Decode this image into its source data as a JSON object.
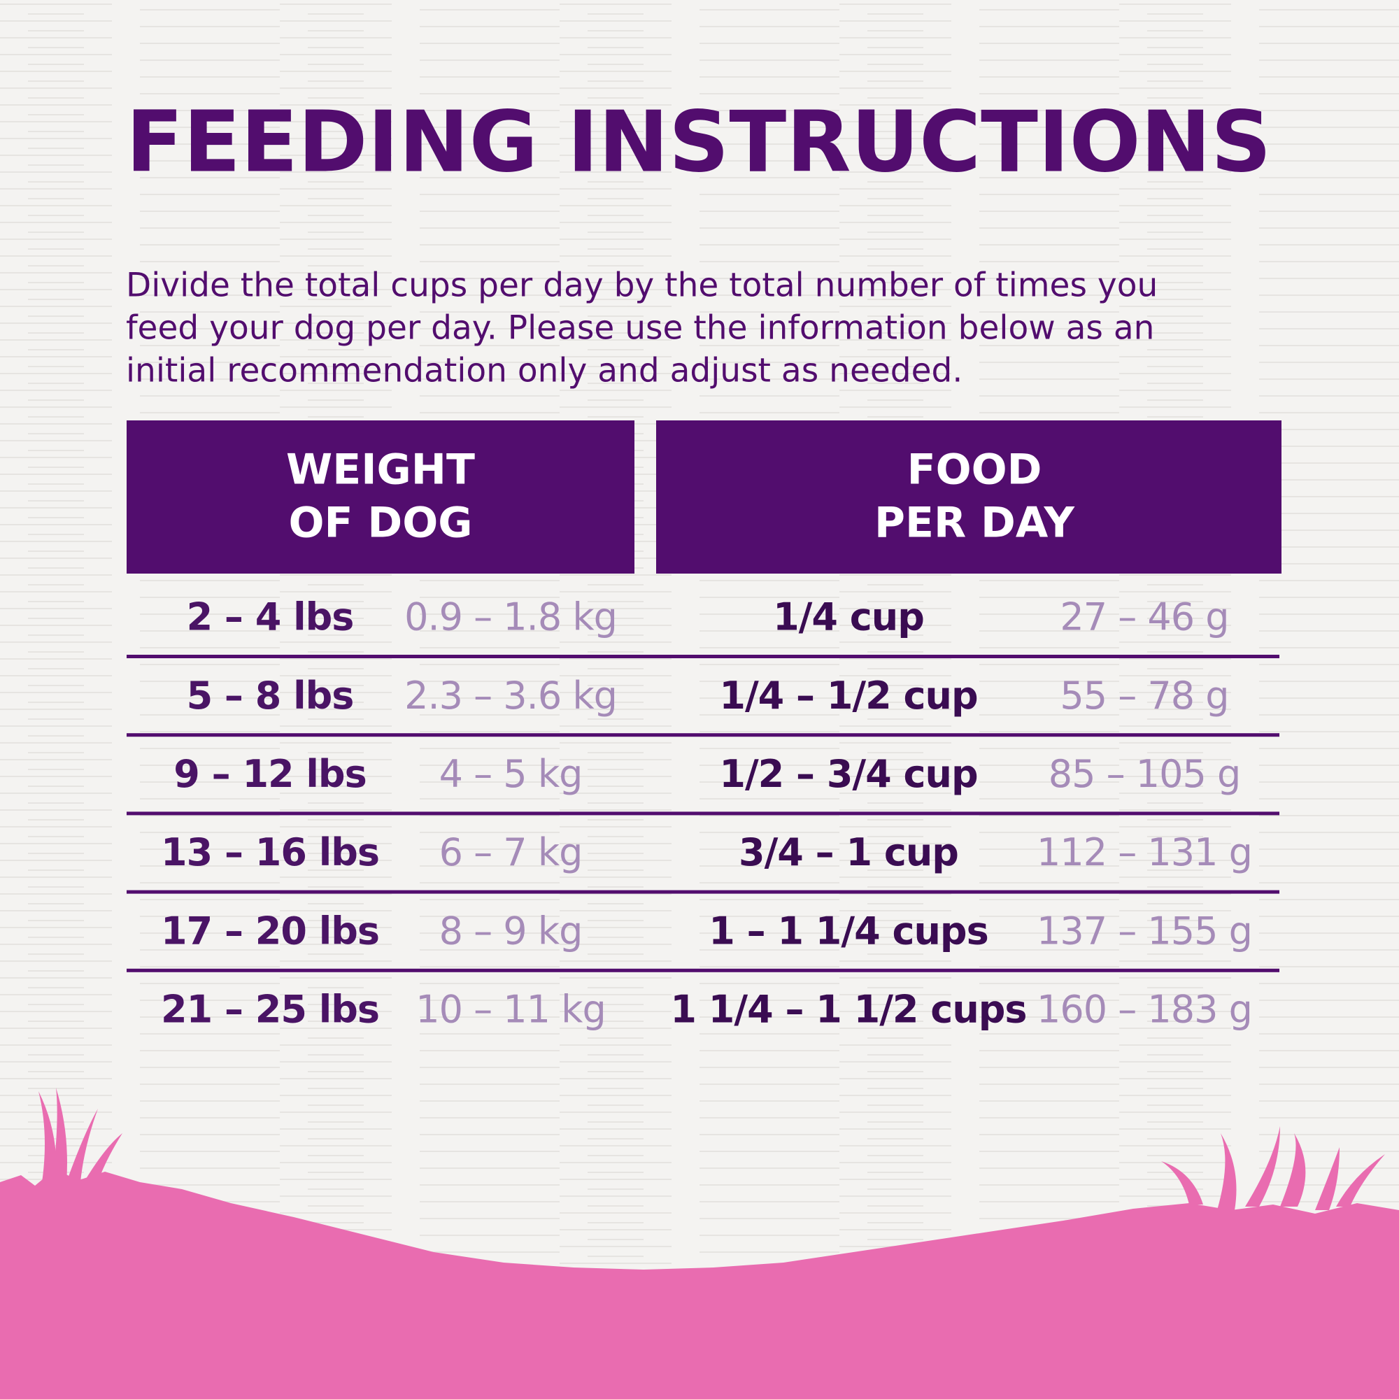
{
  "header": {
    "title": "FEEDING INSTRUCTIONS"
  },
  "intro": [
    "Divide the total cups per day by the total number of times you",
    "feed your dog per day. Please use the information below as an",
    "initial recommendation only and adjust as needed."
  ],
  "table": {
    "headers": [
      [
        "WEIGHT",
        "OF DOG"
      ],
      [
        "FOOD",
        "PER DAY"
      ]
    ],
    "rows": [
      [
        "2 – 4 lbs",
        "0.9 – 1.8 kg",
        "1/4 cup",
        "27 – 46 g"
      ],
      [
        "5 – 8 lbs",
        "2.3 – 3.6 kg",
        "1/4 – 1/2 cup",
        "55 – 78 g"
      ],
      [
        "9 – 12 lbs",
        "4 – 5 kg",
        "1/2 – 3/4 cup",
        "85 – 105 g"
      ],
      [
        "13 – 16 lbs",
        "6 – 7 kg",
        "3/4 – 1 cup",
        "112 – 131 g"
      ],
      [
        "17 – 20 lbs",
        "8 – 9 kg",
        "1 – 1 1/4 cups",
        "137 – 155 g"
      ],
      [
        "21 – 25 lbs",
        "10 – 11 kg",
        "1 1/4 – 1 1/2 cups",
        "160 – 183 g"
      ]
    ]
  }
}
